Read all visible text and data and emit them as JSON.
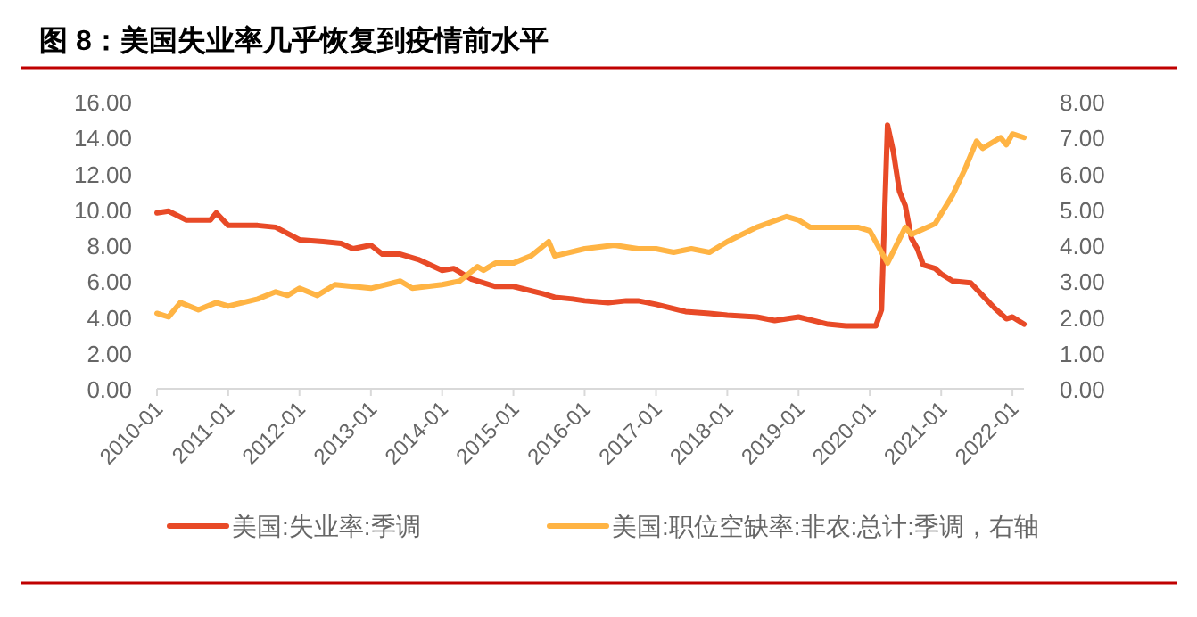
{
  "chart_data": {
    "type": "line",
    "title": "图 8：美国失业率几乎恢复到疫情前水平",
    "xlim": [
      "2010-01",
      "2022-03"
    ],
    "xticks": [
      "2010-01",
      "2011-01",
      "2012-01",
      "2013-01",
      "2014-01",
      "2015-01",
      "2016-01",
      "2017-01",
      "2018-01",
      "2019-01",
      "2020-01",
      "2021-01",
      "2022-01"
    ],
    "ylim": [
      0,
      16
    ],
    "yticks": [
      {
        "value": 0,
        "label": "0.00"
      },
      {
        "value": 2,
        "label": "2.00"
      },
      {
        "value": 4,
        "label": "4.00"
      },
      {
        "value": 6,
        "label": "6.00"
      },
      {
        "value": 8,
        "label": "8.00"
      },
      {
        "value": 10,
        "label": "10.00"
      },
      {
        "value": 12,
        "label": "12.00"
      },
      {
        "value": 14,
        "label": "14.00"
      },
      {
        "value": 16,
        "label": "16.00"
      }
    ],
    "y2lim": [
      0,
      8
    ],
    "y2ticks": [
      {
        "value": 0,
        "label": "0.00"
      },
      {
        "value": 1,
        "label": "1.00"
      },
      {
        "value": 2,
        "label": "2.00"
      },
      {
        "value": 3,
        "label": "3.00"
      },
      {
        "value": 4,
        "label": "4.00"
      },
      {
        "value": 5,
        "label": "5.00"
      },
      {
        "value": 6,
        "label": "6.00"
      },
      {
        "value": 7,
        "label": "7.00"
      },
      {
        "value": 8,
        "label": "8.00"
      }
    ],
    "legend": "bottom",
    "grid": false,
    "series": [
      {
        "name": "美国:失业率:季调",
        "color": "#e84a27",
        "x": [
          "2010-01",
          "2010-03",
          "2010-06",
          "2010-10",
          "2010-11",
          "2011-01",
          "2011-04",
          "2011-06",
          "2011-09",
          "2012-01",
          "2012-05",
          "2012-08",
          "2012-10",
          "2013-01",
          "2013-03",
          "2013-06",
          "2013-09",
          "2014-01",
          "2014-03",
          "2014-06",
          "2014-10",
          "2015-01",
          "2015-06",
          "2015-08",
          "2015-11",
          "2016-01",
          "2016-05",
          "2016-08",
          "2016-10",
          "2017-01",
          "2017-06",
          "2017-10",
          "2018-01",
          "2018-06",
          "2018-09",
          "2019-01",
          "2019-06",
          "2019-09",
          "2020-01",
          "2020-02",
          "2020-03",
          "2020-04",
          "2020-05",
          "2020-06",
          "2020-07",
          "2020-08",
          "2020-09",
          "2020-10",
          "2020-12",
          "2021-01",
          "2021-03",
          "2021-06",
          "2021-08",
          "2021-10",
          "2021-12",
          "2022-01",
          "2022-03"
        ],
        "values": [
          9.8,
          9.9,
          9.4,
          9.4,
          9.8,
          9.1,
          9.1,
          9.1,
          9.0,
          8.3,
          8.2,
          8.1,
          7.8,
          8.0,
          7.5,
          7.5,
          7.2,
          6.6,
          6.7,
          6.1,
          5.7,
          5.7,
          5.3,
          5.1,
          5.0,
          4.9,
          4.8,
          4.9,
          4.9,
          4.7,
          4.3,
          4.2,
          4.1,
          4.0,
          3.8,
          4.0,
          3.6,
          3.5,
          3.5,
          3.5,
          4.4,
          14.7,
          13.2,
          11.0,
          10.2,
          8.4,
          7.8,
          6.9,
          6.7,
          6.4,
          6.0,
          5.9,
          5.2,
          4.5,
          3.9,
          4.0,
          3.6
        ]
      },
      {
        "name": "美国:职位空缺率:非农:总计:季调，右轴",
        "color": "#ffb444",
        "axis": "y2",
        "x": [
          "2010-01",
          "2010-03",
          "2010-05",
          "2010-08",
          "2010-11",
          "2011-01",
          "2011-06",
          "2011-09",
          "2011-11",
          "2012-01",
          "2012-04",
          "2012-07",
          "2013-01",
          "2013-06",
          "2013-08",
          "2014-01",
          "2014-04",
          "2014-07",
          "2014-08",
          "2014-10",
          "2015-01",
          "2015-04",
          "2015-07",
          "2015-08",
          "2016-01",
          "2016-06",
          "2016-10",
          "2017-01",
          "2017-04",
          "2017-07",
          "2017-10",
          "2018-01",
          "2018-06",
          "2018-11",
          "2019-01",
          "2019-03",
          "2019-08",
          "2019-11",
          "2020-01",
          "2020-04",
          "2020-07",
          "2020-08",
          "2020-12",
          "2021-03",
          "2021-05",
          "2021-07",
          "2021-08",
          "2021-11",
          "2021-12",
          "2022-01",
          "2022-03"
        ],
        "values": [
          2.1,
          2.0,
          2.4,
          2.2,
          2.4,
          2.3,
          2.5,
          2.7,
          2.6,
          2.8,
          2.6,
          2.9,
          2.8,
          3.0,
          2.8,
          2.9,
          3.0,
          3.4,
          3.3,
          3.5,
          3.5,
          3.7,
          4.1,
          3.7,
          3.9,
          4.0,
          3.9,
          3.9,
          3.8,
          3.9,
          3.8,
          4.1,
          4.5,
          4.8,
          4.7,
          4.5,
          4.5,
          4.5,
          4.4,
          3.5,
          4.5,
          4.3,
          4.6,
          5.4,
          6.1,
          6.9,
          6.7,
          7.0,
          6.8,
          7.1,
          7.0
        ]
      }
    ]
  }
}
